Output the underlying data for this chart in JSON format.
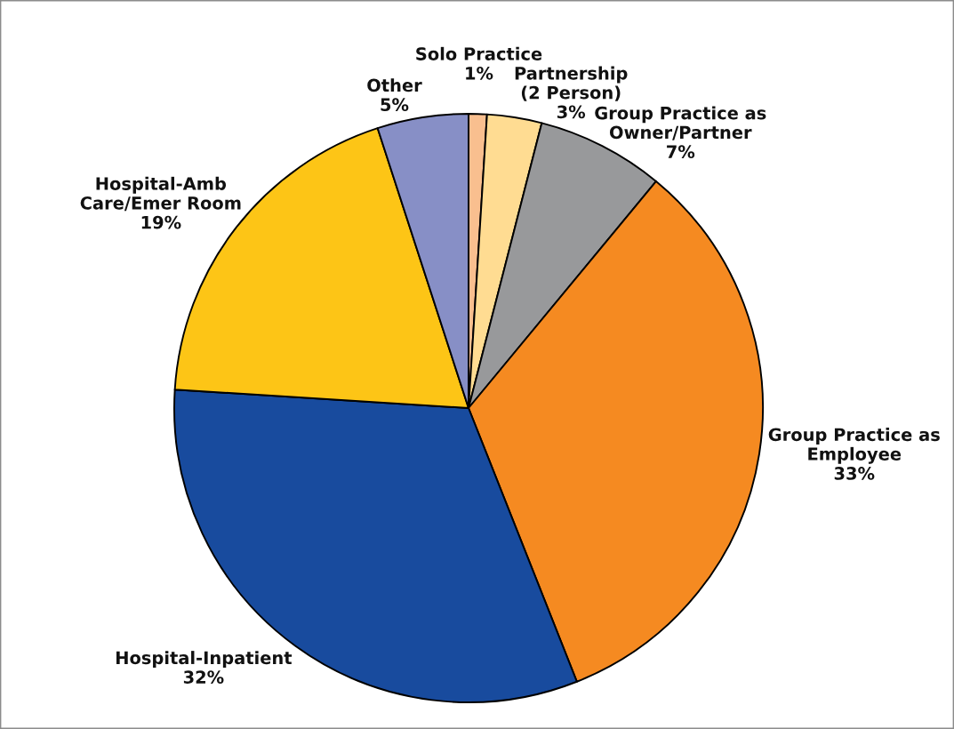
{
  "chart_data": {
    "type": "pie",
    "categories": [
      "Solo Practice",
      "Partnership\n(2 Person)",
      "Group Practice as\nOwner/Partner",
      "Group Practice as\nEmployee",
      "Hospital-Inpatient",
      "Hospital-Amb\nCare/Emer Room",
      "Other"
    ],
    "values": [
      1,
      3,
      7,
      33,
      32,
      19,
      5
    ],
    "colors": [
      "#f9bf8f",
      "#ffdc92",
      "#98999b",
      "#f58a21",
      "#184b9e",
      "#fdc516",
      "#878fc6"
    ],
    "value_labels": [
      "1%",
      "3%",
      "7%",
      "33%",
      "32%",
      "19%",
      "5%"
    ]
  }
}
